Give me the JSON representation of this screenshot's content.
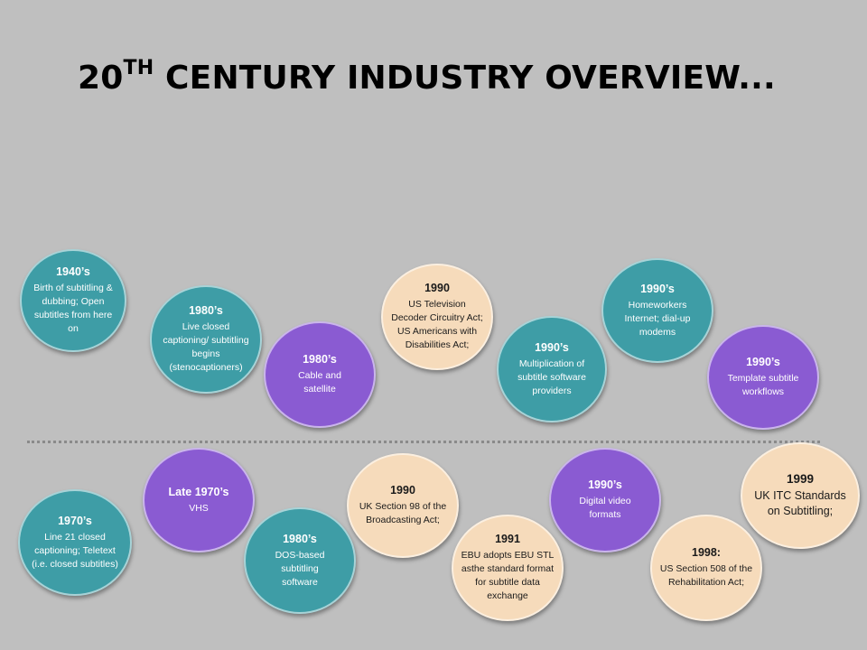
{
  "title": {
    "main": "20",
    "sup": "TH",
    "rest": " CENTURY INDUSTRY OVERVIEW..."
  },
  "colors": {
    "teal": "#3e9da6",
    "purple": "#8a5bd2",
    "beige": "#f6dbbb",
    "background": "#bfbfbf"
  },
  "timeline": {
    "top": [
      {
        "year": "1940’s",
        "text": "Birth of subtitling & dubbing; Open subtitles from here on"
      },
      {
        "year": "1980’s",
        "text": "Live closed captioning/ subtitling begins (stenocaptioners)"
      },
      {
        "year": "1980’s",
        "text": "Cable and satellite"
      },
      {
        "year": "1990",
        "text": "US Television Decoder Circuitry Act; US Americans with Disabilities Act;"
      },
      {
        "year": "1990’s",
        "text": "Multiplication of subtitle software providers"
      },
      {
        "year": "1990’s",
        "text": "Homeworkers Internet; dial-up modems"
      },
      {
        "year": "1990’s",
        "text": "Template subtitle workflows"
      }
    ],
    "bottom": [
      {
        "year": "1970’s",
        "text": "Line 21 closed captioning; Teletext (i.e. closed subtitles)"
      },
      {
        "year": "Late 1970’s",
        "text": "VHS"
      },
      {
        "year": "1980’s",
        "text": "DOS-based subtitling software"
      },
      {
        "year": "1990",
        "text": "UK Section 98 of the Broadcasting Act;"
      },
      {
        "year": "1991",
        "text": "EBU adopts EBU STL asthe standard format for subtitle data exchange"
      },
      {
        "year": "1990’s",
        "text": "Digital video formats"
      },
      {
        "year": "1998:",
        "text": "US Section 508 of the Rehabilitation Act;"
      },
      {
        "year": "1999",
        "text": "UK ITC Standards on Subtitling;"
      }
    ]
  }
}
